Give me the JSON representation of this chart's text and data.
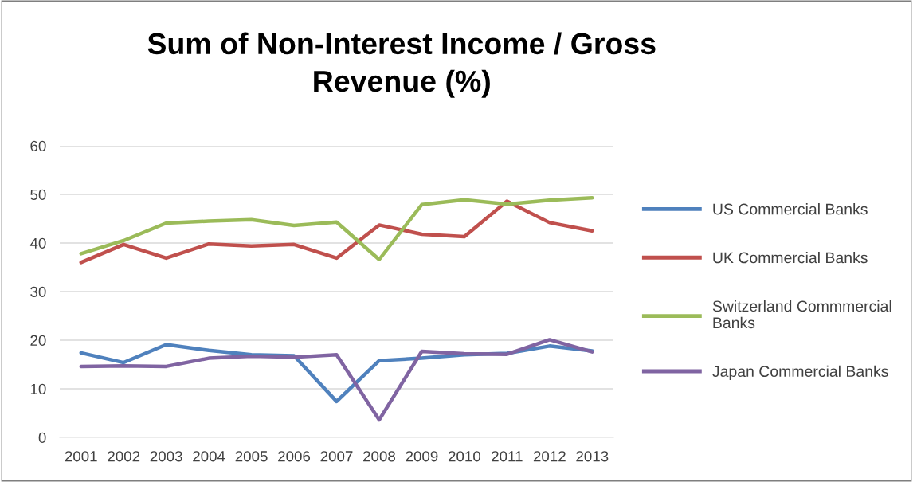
{
  "chart_data": {
    "type": "line",
    "title": "Sum of Non-Interest Income / Gross Revenue (%)",
    "categories": [
      "2001",
      "2002",
      "2003",
      "2004",
      "2005",
      "2006",
      "2007",
      "2008",
      "2009",
      "2010",
      "2011",
      "2012",
      "2013"
    ],
    "series": [
      {
        "name": "US Commercial Banks",
        "color": "#4f81bd",
        "values": [
          17.4,
          15.4,
          19.1,
          17.9,
          17.0,
          16.8,
          7.4,
          15.8,
          16.3,
          17.0,
          17.3,
          18.8,
          17.8
        ]
      },
      {
        "name": "UK Commercial Banks",
        "color": "#c0504d",
        "values": [
          36.0,
          39.7,
          36.9,
          39.8,
          39.4,
          39.7,
          36.9,
          43.7,
          41.8,
          41.3,
          48.6,
          44.2,
          42.5
        ]
      },
      {
        "name": "Switzerland Commmercial Banks",
        "color": "#9bbb59",
        "values": [
          37.8,
          40.5,
          44.1,
          44.5,
          44.8,
          43.6,
          44.3,
          36.6,
          47.9,
          48.9,
          48.0,
          48.8,
          49.3
        ]
      },
      {
        "name": "Japan Commercial Banks",
        "color": "#8064a2",
        "values": [
          14.6,
          14.7,
          14.6,
          16.3,
          16.7,
          16.5,
          17.0,
          3.6,
          17.7,
          17.2,
          17.1,
          20.1,
          17.6
        ]
      }
    ],
    "ylim": [
      0,
      60
    ],
    "yticks": [
      0,
      10,
      20,
      30,
      40,
      50,
      60
    ],
    "grid": "y",
    "legend": "right",
    "marker": "none",
    "line_style": "solid"
  }
}
